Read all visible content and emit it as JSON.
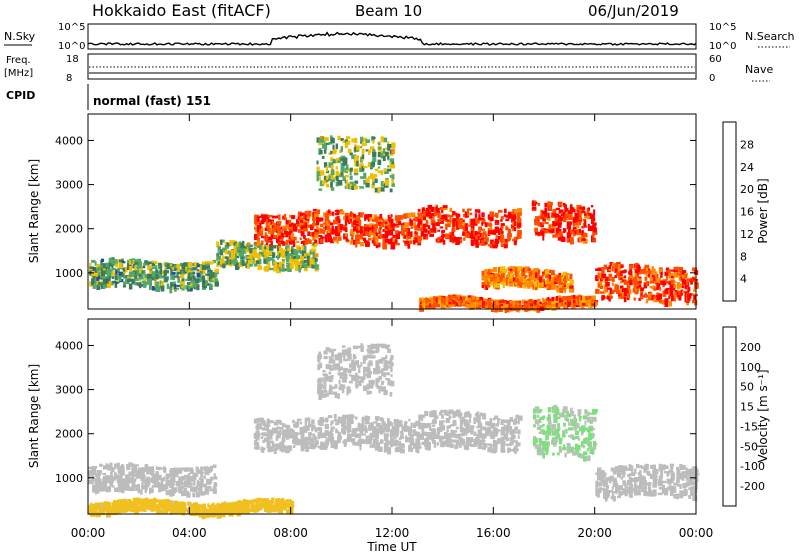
{
  "header": {
    "station": "Hokkaido East (fitACF)",
    "beam": "Beam 10",
    "date": "06/Jun/2019"
  },
  "top_panels": {
    "nsky_label": "N.Sky",
    "nsearch_label": "N.Search",
    "noise_ticks": [
      "10^5",
      "10^0"
    ],
    "freq_label": "Freq.",
    "freq_unit": "[MHz]",
    "freq_ticks": [
      "18",
      "8"
    ],
    "nave_label": "Nave",
    "nave_ticks": [
      "60",
      "0"
    ],
    "cpid_label": "CPID",
    "cpid_text": "normal (fast) 151"
  },
  "colors": {
    "power": [
      "#0000ff",
      "#1e4fa0",
      "#3c7a5a",
      "#52a86a",
      "#f0c000",
      "#ff8c00",
      "#ff5000",
      "#ff0000"
    ],
    "velocity": [
      "#2a2ab0",
      "#2c6a2c",
      "#50b050",
      "#7ce07c",
      "#bfbfbf",
      "#f0c020",
      "#ff9000",
      "#ff5a00",
      "#ff0000"
    ],
    "ground_scatter": "#bcbcbc"
  },
  "chart_data": [
    {
      "type": "heatmap",
      "name": "power",
      "ylabel": "Slant Range [km]",
      "xlabel": "Time UT",
      "x_ticks": [
        "00:00",
        "04:00",
        "08:00",
        "12:00",
        "16:00",
        "20:00",
        "00:00"
      ],
      "xlim": [
        0,
        24
      ],
      "ylim": [
        180,
        4600
      ],
      "y_ticks": [
        1000,
        2000,
        3000,
        4000
      ],
      "colorbar": {
        "label": "Power [dB]",
        "ticks": [
          28,
          24,
          20,
          16,
          12,
          8,
          4
        ],
        "range": [
          0,
          30
        ]
      },
      "echo_bands": [
        {
          "t0": 0,
          "t1": 5,
          "r0": 700,
          "r1": 1300,
          "level": 12
        },
        {
          "t0": 5,
          "t1": 9,
          "r0": 1150,
          "r1": 1700,
          "level": 14
        },
        {
          "t0": 6.5,
          "t1": 13,
          "r0": 1700,
          "r1": 2400,
          "level": 26
        },
        {
          "t0": 13,
          "t1": 17,
          "r0": 1700,
          "r1": 2500,
          "level": 27
        },
        {
          "t0": 17.5,
          "t1": 20,
          "r0": 1800,
          "r1": 2600,
          "level": 27
        },
        {
          "t0": 15.5,
          "t1": 19,
          "r0": 700,
          "r1": 1100,
          "level": 22
        },
        {
          "t0": 20,
          "t1": 24,
          "r0": 400,
          "r1": 1200,
          "level": 25
        },
        {
          "t0": 9,
          "t1": 12,
          "r0": 2900,
          "r1": 4100,
          "level": 14
        },
        {
          "t0": 13,
          "t1": 20,
          "r0": 250,
          "r1": 450,
          "level": 23
        }
      ]
    },
    {
      "type": "heatmap",
      "name": "velocity",
      "ylabel": "Slant Range [km]",
      "xlabel": "Time UT",
      "x_ticks": [
        "00:00",
        "04:00",
        "08:00",
        "12:00",
        "16:00",
        "20:00",
        "00:00"
      ],
      "xlim": [
        0,
        24
      ],
      "ylim": [
        180,
        4600
      ],
      "y_ticks": [
        1000,
        2000,
        3000,
        4000
      ],
      "colorbar": {
        "label": "Velocity [m s⁻¹]",
        "ticks": [
          200,
          100,
          50,
          15,
          -15,
          -50,
          -100,
          -200
        ],
        "range": [
          -250,
          250
        ]
      },
      "echo_bands": [
        {
          "t0": 0,
          "t1": 5,
          "r0": 700,
          "r1": 1300,
          "level": 0
        },
        {
          "t0": 6.5,
          "t1": 13,
          "r0": 1700,
          "r1": 2400,
          "level": 0
        },
        {
          "t0": 13,
          "t1": 17,
          "r0": 1700,
          "r1": 2500,
          "level": 0
        },
        {
          "t0": 17.5,
          "t1": 20,
          "r0": 1500,
          "r1": 2600,
          "level": 30
        },
        {
          "t0": 20,
          "t1": 24,
          "r0": 600,
          "r1": 1300,
          "level": 0
        },
        {
          "t0": 0,
          "t1": 8,
          "r0": 250,
          "r1": 500,
          "level": -40
        },
        {
          "t0": 9,
          "t1": 12,
          "r0": 2900,
          "r1": 4000,
          "level": 5
        }
      ]
    }
  ]
}
